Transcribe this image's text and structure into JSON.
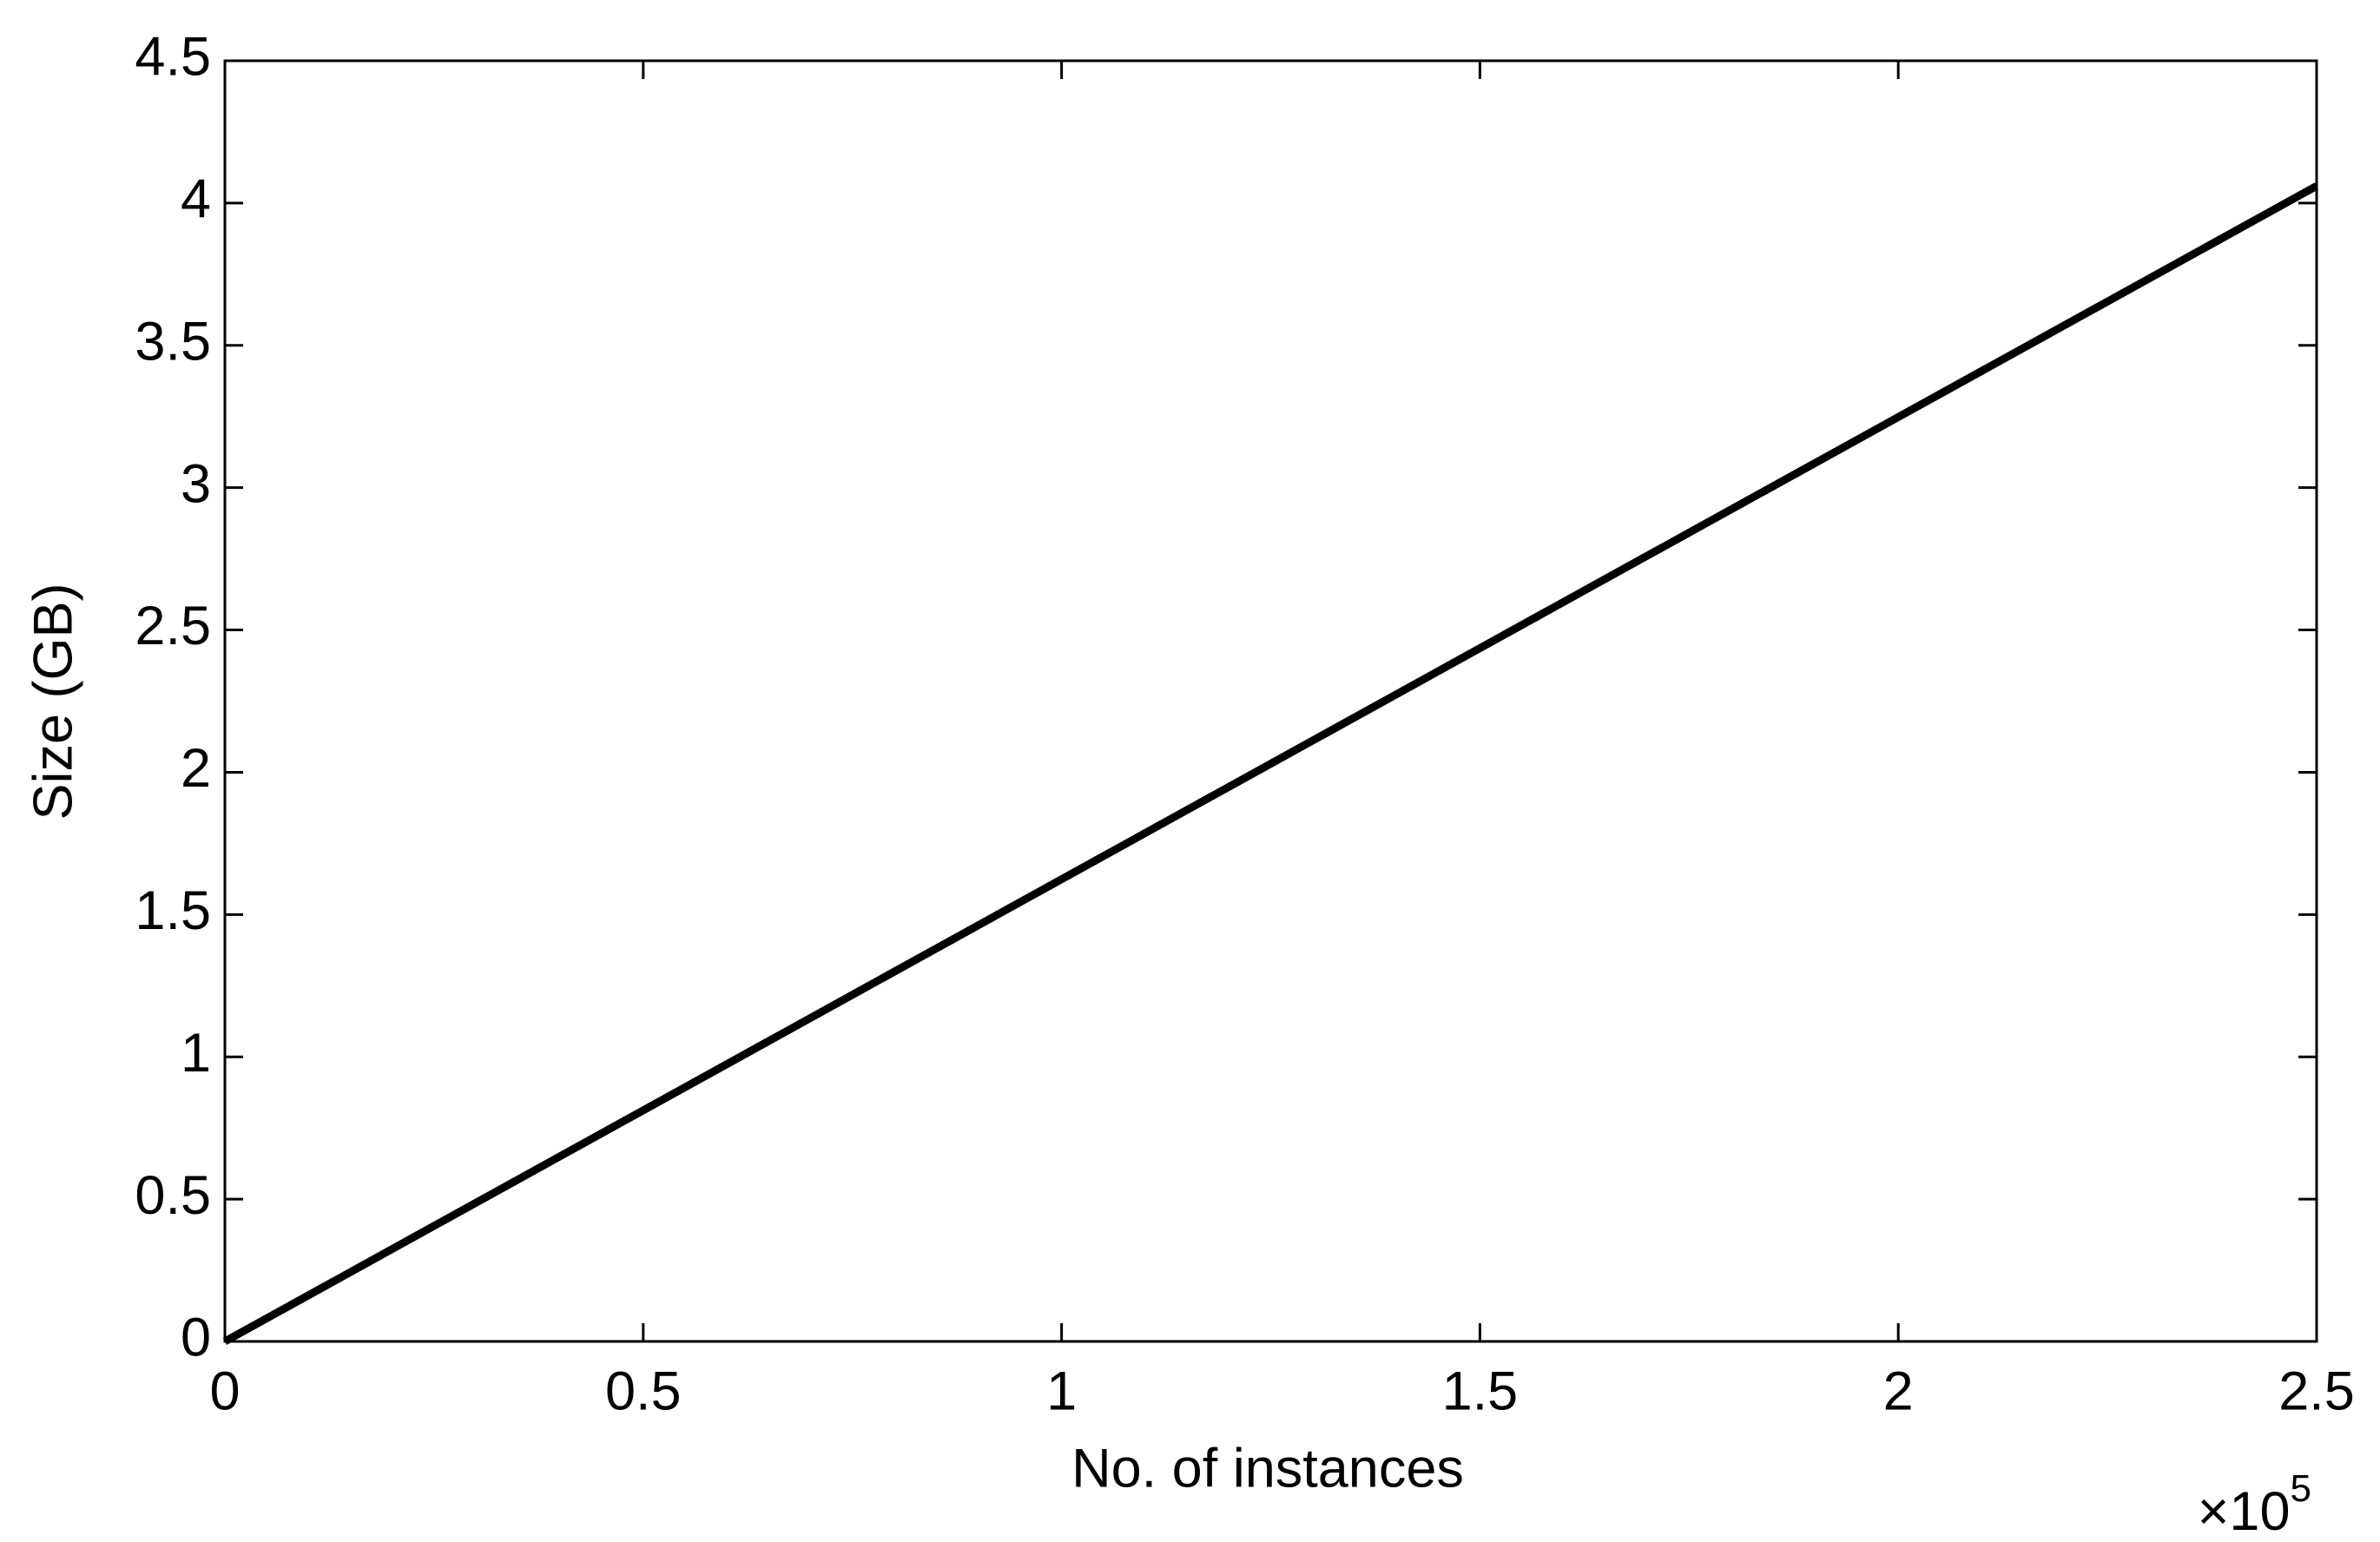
{
  "chart_data": {
    "type": "line",
    "x_label": "No. of instances",
    "y_label": "Size (GB)",
    "x_multiplier": {
      "base": "×10",
      "exponent": "5"
    },
    "x": [
      0,
      2.5
    ],
    "series": [
      {
        "name": "Size",
        "color": "#000000",
        "values": [
          0,
          4.06
        ]
      }
    ],
    "xlim": [
      0,
      2.5
    ],
    "xticks": [
      0,
      0.5,
      1,
      1.5,
      2,
      2.5
    ],
    "ylim": [
      0,
      4.5
    ],
    "yticks": [
      0,
      0.5,
      1,
      1.5,
      2,
      2.5,
      3,
      3.5,
      4,
      4.5
    ],
    "grid": false
  }
}
